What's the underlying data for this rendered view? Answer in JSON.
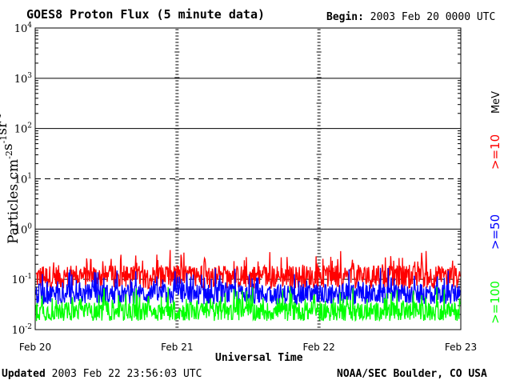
{
  "header": {
    "title": "GOES8 Proton Flux (5 minute data)",
    "begin_label": "Begin:",
    "begin_value": "2003 Feb 20 0000 UTC"
  },
  "footer": {
    "updated_label": "Updated",
    "updated_value": "2003 Feb 22 23:56:03 UTC",
    "credit": "NOAA/SEC Boulder, CO USA"
  },
  "chart_data": {
    "type": "line",
    "title": "GOES8 Proton Flux (5 minute data)",
    "xlabel": "Universal Time",
    "ylabel": "Particles cm-2s-1sr-1",
    "y_scale": "log",
    "ylim": [
      0.01,
      10000
    ],
    "y_ticks": [
      {
        "base": "10",
        "exp": "-2"
      },
      {
        "base": "10",
        "exp": "-1"
      },
      {
        "base": "10",
        "exp": "0"
      },
      {
        "base": "10",
        "exp": "1"
      },
      {
        "base": "10",
        "exp": "2"
      },
      {
        "base": "10",
        "exp": "3"
      },
      {
        "base": "10",
        "exp": "4"
      }
    ],
    "x_ticks": [
      "Feb 20",
      "Feb 21",
      "Feb 22",
      "Feb 23"
    ],
    "xlim": [
      "2003-02-20 00:00",
      "2003-02-23 00:00"
    ],
    "dashed_reference_levels": [
      0.1,
      10
    ],
    "units_label": "MeV",
    "series": [
      {
        "name": ">=10",
        "color": "#ff0000",
        "typical_range": [
          0.05,
          0.3
        ]
      },
      {
        "name": ">=50",
        "color": "#0000ff",
        "typical_range": [
          0.025,
          0.12
        ]
      },
      {
        "name": ">=100",
        "color": "#00ff00",
        "typical_range": [
          0.012,
          0.05
        ]
      }
    ]
  }
}
